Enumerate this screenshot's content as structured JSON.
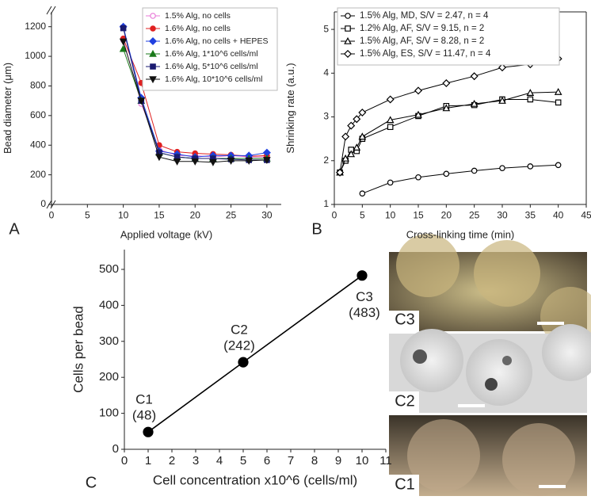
{
  "chart_data": [
    {
      "type": "line",
      "x_label": "Applied voltage (kV)",
      "y_label": "Bead diameter (μm)",
      "x": [
        10,
        12.5,
        15,
        17.5,
        20,
        22.5,
        25,
        27.5,
        30
      ],
      "xlim": [
        0,
        32
      ],
      "xticks": [
        0,
        5,
        10,
        15,
        20,
        25,
        30
      ],
      "ylim": [
        0,
        1300
      ],
      "yticks": [
        0,
        200,
        400,
        600,
        800,
        1000,
        1200
      ],
      "legend": "upper right",
      "series": [
        {
          "name": "1.5% Alg, no cells",
          "color": "#e87ad8",
          "marker": "circle-open",
          "values": [
            1110,
            680,
            370,
            330,
            330,
            320,
            330,
            320,
            320
          ]
        },
        {
          "name": "1.6% Alg, no cells",
          "color": "#e02020",
          "marker": "circle",
          "values": [
            1120,
            820,
            400,
            355,
            345,
            340,
            335,
            325,
            330
          ]
        },
        {
          "name": "1.6% Alg, no cells + HEPES",
          "color": "#2040e0",
          "marker": "diamond",
          "values": [
            1200,
            720,
            360,
            340,
            320,
            330,
            330,
            330,
            350
          ]
        },
        {
          "name": "1.6% Alg, 1*10^6 cells/ml",
          "color": "#1a7a1a",
          "marker": "triangle-up",
          "values": [
            1050,
            700,
            350,
            320,
            310,
            310,
            310,
            310,
            310
          ]
        },
        {
          "name": "1.6% Alg, 5*10^6 cells/ml",
          "color": "#1a1a70",
          "marker": "square",
          "values": [
            1190,
            700,
            350,
            320,
            310,
            310,
            305,
            300,
            300
          ]
        },
        {
          "name": "1.6% Alg, 10*10^6 cells/ml",
          "color": "#111111",
          "marker": "triangle-down",
          "values": [
            1100,
            700,
            320,
            290,
            290,
            285,
            295,
            295,
            300
          ]
        }
      ]
    },
    {
      "type": "line",
      "x_label": "Cross-linking time (min)",
      "y_label": "Shrinking rate (a.u.)",
      "xlim": [
        0,
        45
      ],
      "xticks": [
        0,
        5,
        10,
        15,
        20,
        25,
        30,
        35,
        40,
        45
      ],
      "ylim": [
        1,
        5.4
      ],
      "yticks": [
        1,
        2,
        3,
        4,
        5
      ],
      "legend": "upper left",
      "series": [
        {
          "name": "1.5% Alg, MD, S/V = 2.47, n = 4",
          "color": "#000000",
          "marker": "circle-open",
          "x": [
            5,
            10,
            15,
            20,
            25,
            30,
            35,
            40
          ],
          "values": [
            1.25,
            1.5,
            1.62,
            1.7,
            1.77,
            1.83,
            1.87,
            1.9
          ]
        },
        {
          "name": "1.2% Alg, AF, S/V = 9.15, n = 2",
          "color": "#000000",
          "marker": "square-open",
          "x": [
            1,
            2,
            3,
            4,
            5,
            10,
            15,
            20,
            25,
            30,
            35,
            40
          ],
          "values": [
            1.73,
            2.0,
            2.25,
            2.22,
            2.5,
            2.77,
            3.02,
            3.25,
            3.27,
            3.4,
            3.4,
            3.33
          ]
        },
        {
          "name": "1.5% Alg, AF, S/V = 8.28, n = 2",
          "color": "#000000",
          "marker": "triangle-open",
          "x": [
            1,
            2,
            3,
            4,
            5,
            10,
            15,
            20,
            25,
            30,
            35,
            40
          ],
          "values": [
            1.73,
            2.05,
            2.15,
            2.3,
            2.55,
            2.93,
            3.05,
            3.2,
            3.3,
            3.37,
            3.55,
            3.57
          ]
        },
        {
          "name": "1.5% Alg, ES, S/V = 11.47, n = 4",
          "color": "#000000",
          "marker": "diamond-open",
          "x": [
            1,
            2,
            3,
            4,
            5,
            10,
            15,
            20,
            25,
            30,
            35,
            40
          ],
          "values": [
            1.73,
            2.55,
            2.8,
            2.95,
            3.1,
            3.4,
            3.6,
            3.77,
            3.93,
            4.13,
            4.2,
            4.33
          ]
        }
      ]
    },
    {
      "type": "line",
      "x_label": "Cell concentration x10^6 (cells/ml)",
      "y_label": "Cells per bead",
      "xlim": [
        0,
        11
      ],
      "xticks": [
        0,
        1,
        2,
        3,
        4,
        5,
        6,
        7,
        8,
        9,
        10,
        11
      ],
      "ylim": [
        0,
        555
      ],
      "yticks": [
        0,
        100,
        200,
        300,
        400,
        500
      ],
      "series": [
        {
          "color": "#000000",
          "marker": "circle",
          "x": [
            1,
            5,
            10
          ],
          "values": [
            48,
            242,
            483
          ],
          "point_labels": [
            "C1",
            "C2",
            "C3"
          ],
          "value_labels": [
            "(48)",
            "(242)",
            "(483)"
          ]
        }
      ]
    }
  ],
  "panels": [
    "A",
    "B",
    "C"
  ],
  "photos": [
    "C3",
    "C2",
    "C1"
  ]
}
